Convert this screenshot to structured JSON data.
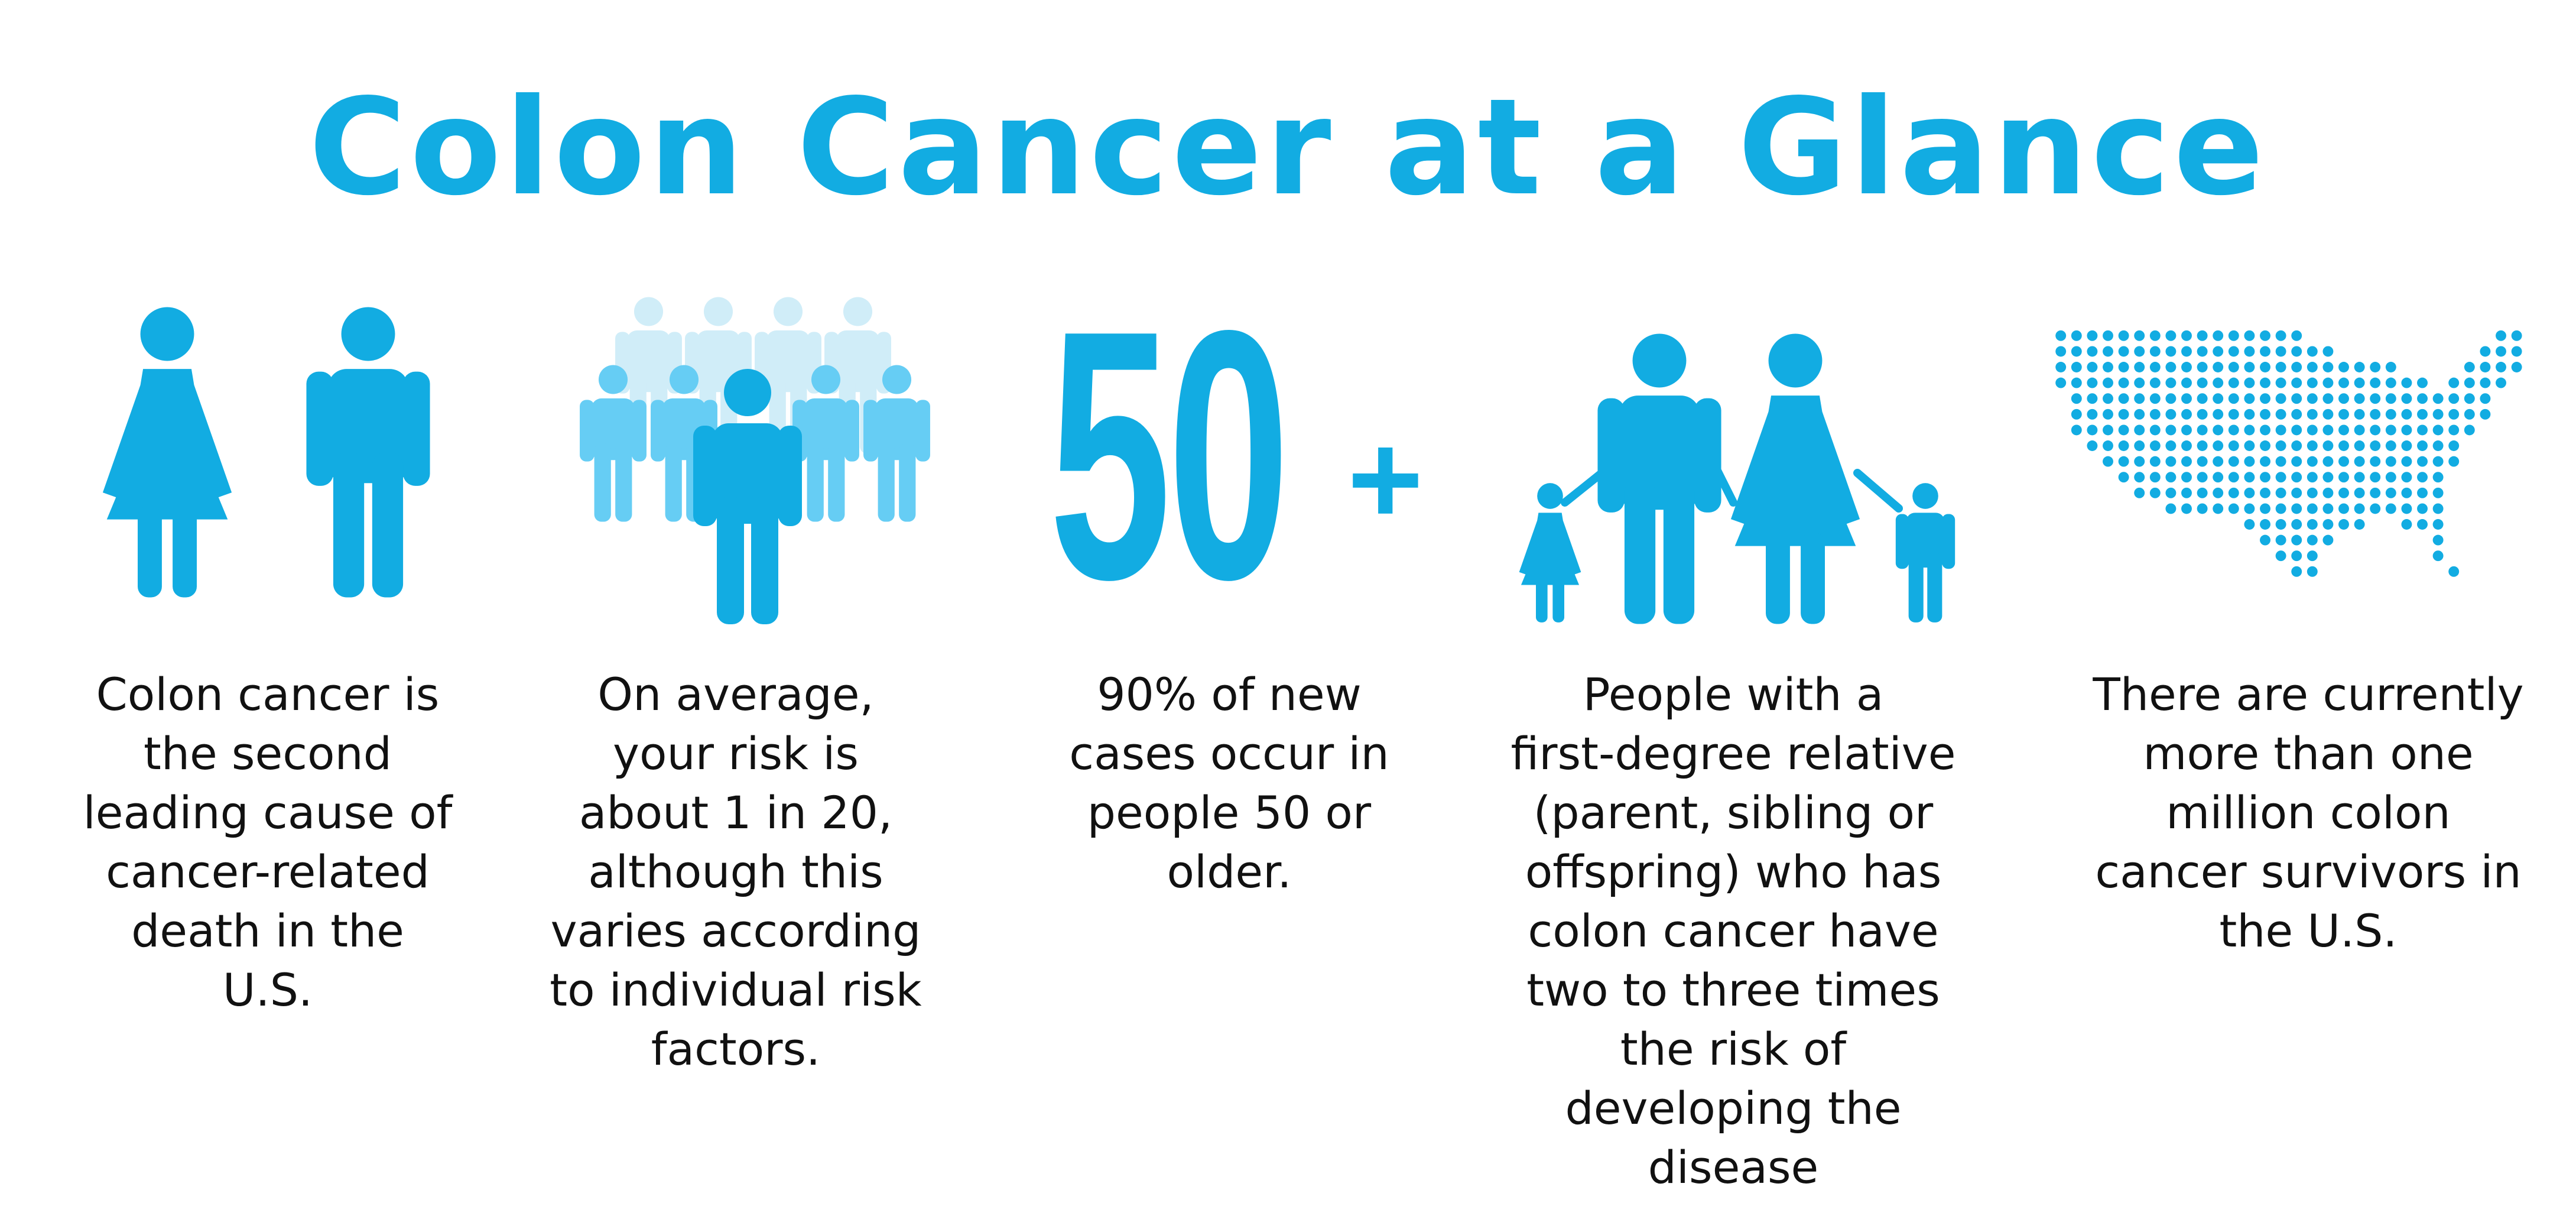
{
  "title": "Colon Cancer at a Glance",
  "colors": {
    "primary": "#12ACE2",
    "medium": "#66CDF4",
    "light": "#D0EDF8",
    "text": "#111111"
  },
  "facts": [
    {
      "icon": "woman-man-icon",
      "text": "Colon cancer is\nthe second\nleading cause of\ncancer-related\ndeath in the\nU.S."
    },
    {
      "icon": "crowd-icon",
      "text": "On average,\nyour risk is\nabout 1 in 20,\nalthough this\nvaries according\nto individual risk\nfactors."
    },
    {
      "icon": "age-50-plus",
      "number": "50",
      "plus": "+",
      "text": "90% of new\ncases occur in\npeople 50 or\nolder."
    },
    {
      "icon": "family-icon",
      "text": "People with a\nfirst-degree relative\n(parent, sibling or\noffspring) who has\ncolon cancer have\ntwo to three times\nthe risk of\ndeveloping the\ndisease"
    },
    {
      "icon": "us-map-icon",
      "text": "There are currently\nmore than one\nmillion colon\ncancer survivors in\nthe U.S."
    }
  ]
}
